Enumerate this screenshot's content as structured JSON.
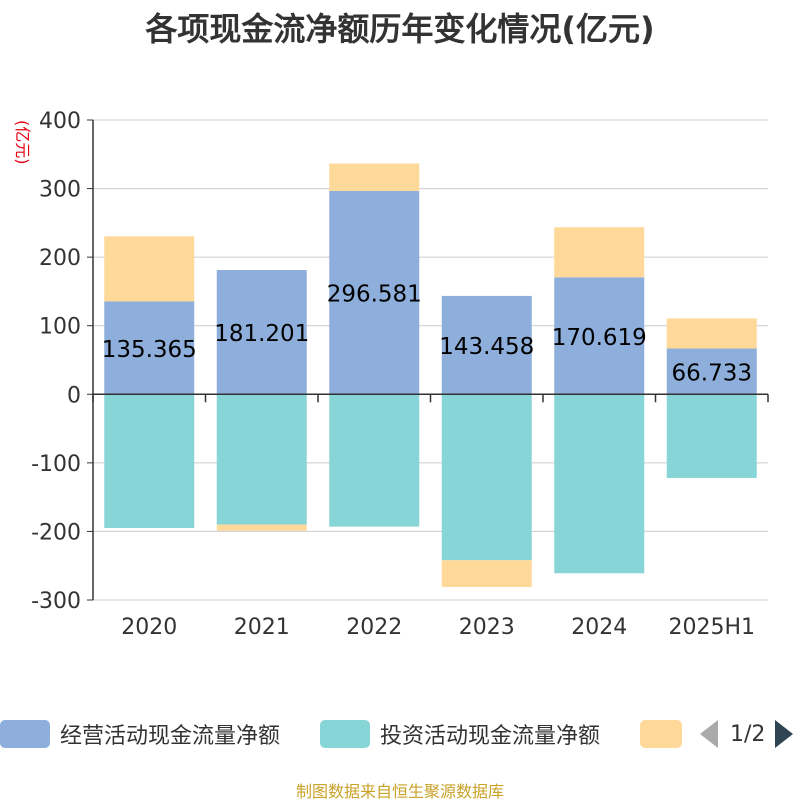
{
  "title": "各项现金流净额历年变化情况(亿元)",
  "unit_label": "(亿元)",
  "footer": "制图数据来自恒生聚源数据库",
  "pager": {
    "text": "1/2"
  },
  "colors": {
    "operating": "#8eaedb",
    "investing": "#88d5d8",
    "financing": "#ffd99a",
    "axis": "#333333",
    "grid": "#cccccc"
  },
  "chart_data": {
    "type": "bar",
    "stacked": true,
    "title": "各项现金流净额历年变化情况(亿元)",
    "ylabel": "(亿元)",
    "ylim": [
      -300,
      400
    ],
    "yticks": [
      -300,
      -200,
      -100,
      0,
      100,
      200,
      300,
      400
    ],
    "grid": true,
    "legend_position": "bottom",
    "categories": [
      "2020",
      "2021",
      "2022",
      "2023",
      "2024",
      "2025H1"
    ],
    "series": [
      {
        "name": "经营活动现金流量净额",
        "values": [
          135.365,
          181.201,
          296.581,
          143.458,
          170.619,
          66.733
        ],
        "labels": [
          "135.365",
          "181.201",
          "296.581",
          "143.458",
          "170.619",
          "66.733"
        ]
      },
      {
        "name": "投资活动现金流量净额",
        "values": [
          -195,
          -190,
          -193,
          -242,
          -261,
          -122
        ]
      },
      {
        "name": "",
        "values": [
          95,
          -9,
          40,
          -39,
          73,
          44
        ]
      }
    ]
  }
}
